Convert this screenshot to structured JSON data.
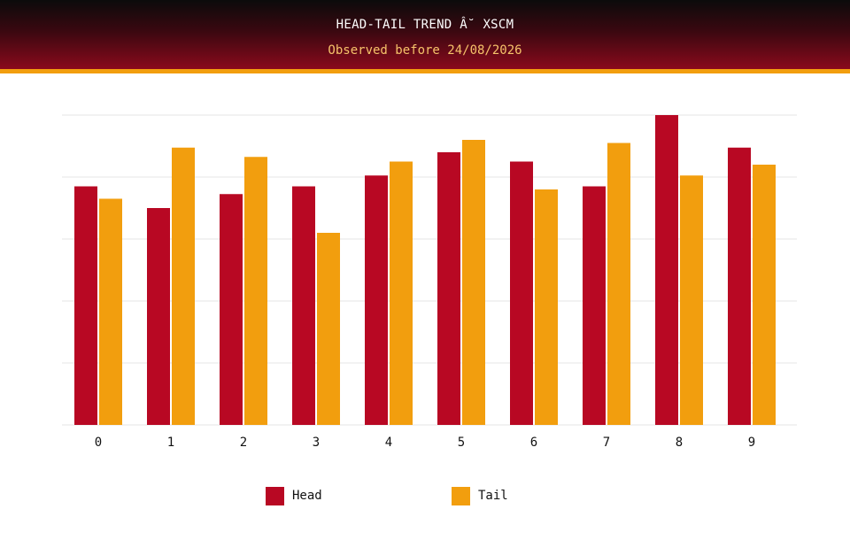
{
  "header": {
    "title": "HEAD-TAIL TREND Â˘ XSCM",
    "subtitle": "Observed before 24/08/2026"
  },
  "colors": {
    "head": "#b80823",
    "tail": "#f29e0e",
    "grid": "#e6e6e6",
    "axis_text": "#111111"
  },
  "chart_data": {
    "type": "bar",
    "title": "HEAD-TAIL TREND Â˘ XSCM",
    "subtitle": "Observed before 24/08/2026",
    "xlabel": "",
    "ylabel": "",
    "categories": [
      "0",
      "1",
      "2",
      "3",
      "4",
      "5",
      "6",
      "7",
      "8",
      "9"
    ],
    "series": [
      {
        "name": "Head",
        "color": "#b80823",
        "values": [
          77,
          70,
          74.5,
          77,
          80.5,
          88,
          85,
          77,
          100,
          89.5
        ]
      },
      {
        "name": "Tail",
        "color": "#f29e0e",
        "values": [
          73,
          89.5,
          86.5,
          62,
          85,
          92,
          76,
          91,
          80.5,
          84
        ]
      }
    ],
    "ylim": [
      0,
      100
    ],
    "y_gridlines": [
      0,
      20,
      40,
      60,
      80,
      100
    ],
    "y_tick_labels_shown": false,
    "grid": true,
    "legend_position": "bottom"
  }
}
